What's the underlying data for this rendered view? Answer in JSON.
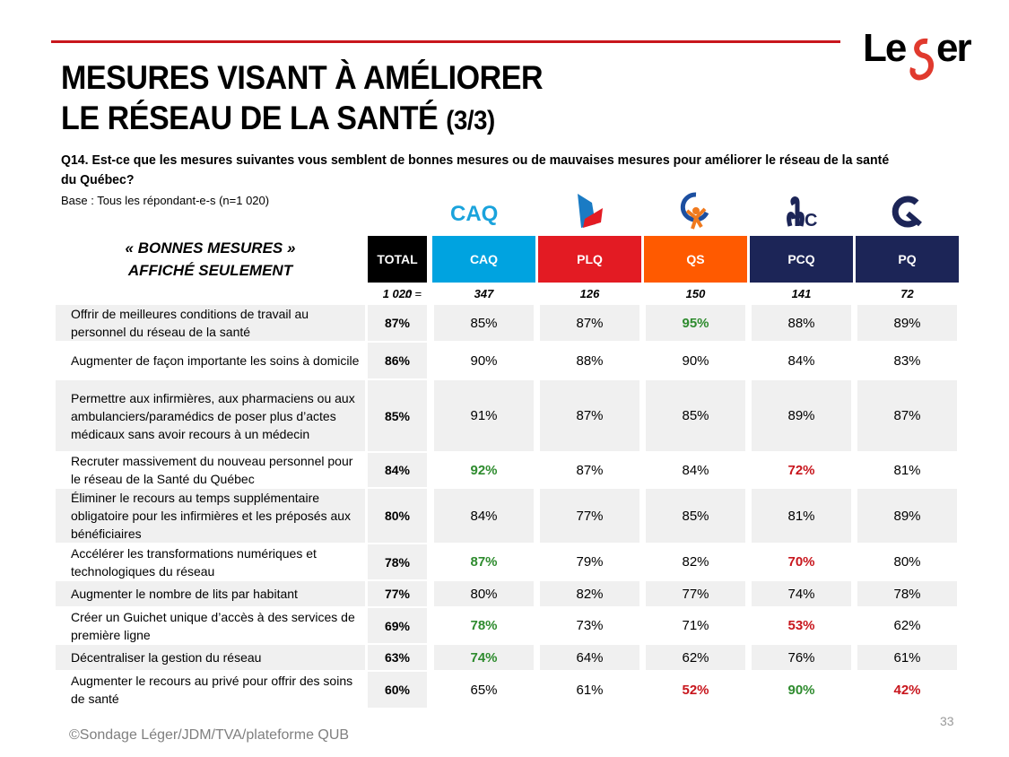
{
  "header": {
    "title_line1": "MESURES VISANT À AMÉLIORER",
    "title_line2": "LE RÉSEAU DE LA SANTÉ",
    "title_part": "(3/3)",
    "brand": "Leger",
    "accent_color": "#c8161d"
  },
  "question": "Q14. Est-ce que les mesures suivantes vous semblent de bonnes mesures ou de mauvaises mesures pour améliorer le réseau de la santé du Québec?",
  "base": "Base : Tous les répondant-e-s (n=1 020)",
  "subtitle_line1": "« BONNES MESURES »",
  "subtitle_line2": "AFFICHÉ SEULEMENT",
  "n_label": "n =",
  "columns": [
    {
      "key": "total",
      "label": "TOTAL",
      "n": "1 020",
      "color": "#000000",
      "logo": ""
    },
    {
      "key": "caq",
      "label": "CAQ",
      "n": "347",
      "color": "#00a3e0",
      "logo": "caq-logo-icon"
    },
    {
      "key": "plq",
      "label": "PLQ",
      "n": "126",
      "color": "#e31b23",
      "logo": "plq-logo-icon"
    },
    {
      "key": "qs",
      "label": "QS",
      "n": "150",
      "color": "#ff5a00",
      "logo": "qs-logo-icon"
    },
    {
      "key": "pcq",
      "label": "PCQ",
      "n": "141",
      "color": "#1c2557",
      "logo": "pcq-logo-icon"
    },
    {
      "key": "pq",
      "label": "PQ",
      "n": "72",
      "color": "#1c2557",
      "logo": "pq-logo-icon"
    }
  ],
  "rows": [
    {
      "label": "Offrir de meilleures conditions de travail au personnel du réseau de la santé",
      "values": [
        "87%",
        "85%",
        "87%",
        "95%",
        "88%",
        "89%"
      ],
      "flags": [
        "",
        "",
        "",
        "high",
        "",
        ""
      ]
    },
    {
      "label": "Augmenter de façon importante les soins à domicile",
      "values": [
        "86%",
        "90%",
        "88%",
        "90%",
        "84%",
        "83%"
      ],
      "flags": [
        "",
        "",
        "",
        "",
        "",
        ""
      ]
    },
    {
      "label": "Permettre aux infirmières, aux pharmaciens ou aux ambulanciers/paramédics de poser plus d’actes médicaux sans avoir recours à un médecin",
      "values": [
        "85%",
        "91%",
        "87%",
        "85%",
        "89%",
        "87%"
      ],
      "flags": [
        "",
        "",
        "",
        "",
        "",
        ""
      ]
    },
    {
      "label": "Recruter massivement du nouveau personnel pour le réseau de la Santé du Québec",
      "values": [
        "84%",
        "92%",
        "87%",
        "84%",
        "72%",
        "81%"
      ],
      "flags": [
        "",
        "high",
        "",
        "",
        "low",
        ""
      ]
    },
    {
      "label": "Éliminer le recours au temps supplémentaire obligatoire pour les infirmières et les préposés aux bénéficiaires",
      "values": [
        "80%",
        "84%",
        "77%",
        "85%",
        "81%",
        "89%"
      ],
      "flags": [
        "",
        "",
        "",
        "",
        "",
        ""
      ]
    },
    {
      "label": "Accélérer les transformations numériques et technologiques du réseau",
      "values": [
        "78%",
        "87%",
        "79%",
        "82%",
        "70%",
        "80%"
      ],
      "flags": [
        "",
        "high",
        "",
        "",
        "low",
        ""
      ]
    },
    {
      "label": "Augmenter le nombre de lits par habitant",
      "values": [
        "77%",
        "80%",
        "82%",
        "77%",
        "74%",
        "78%"
      ],
      "flags": [
        "",
        "",
        "",
        "",
        "",
        ""
      ]
    },
    {
      "label": "Créer un Guichet unique d’accès à des services de première ligne",
      "values": [
        "69%",
        "78%",
        "73%",
        "71%",
        "53%",
        "62%"
      ],
      "flags": [
        "",
        "high",
        "",
        "",
        "low",
        ""
      ]
    },
    {
      "label": "Décentraliser la gestion du réseau",
      "values": [
        "63%",
        "74%",
        "64%",
        "62%",
        "76%",
        "61%"
      ],
      "flags": [
        "",
        "high",
        "",
        "",
        "",
        ""
      ]
    },
    {
      "label": "Augmenter le recours au privé pour offrir des soins de santé",
      "values": [
        "60%",
        "65%",
        "61%",
        "52%",
        "90%",
        "42%"
      ],
      "flags": [
        "",
        "",
        "",
        "low",
        "high",
        "low"
      ]
    }
  ],
  "status_colors": {
    "high": "#2e8b2e",
    "low": "#c8161d"
  },
  "footer": "©Sondage Léger/JDM/TVA/plateforme QUB",
  "page_number": "33"
}
